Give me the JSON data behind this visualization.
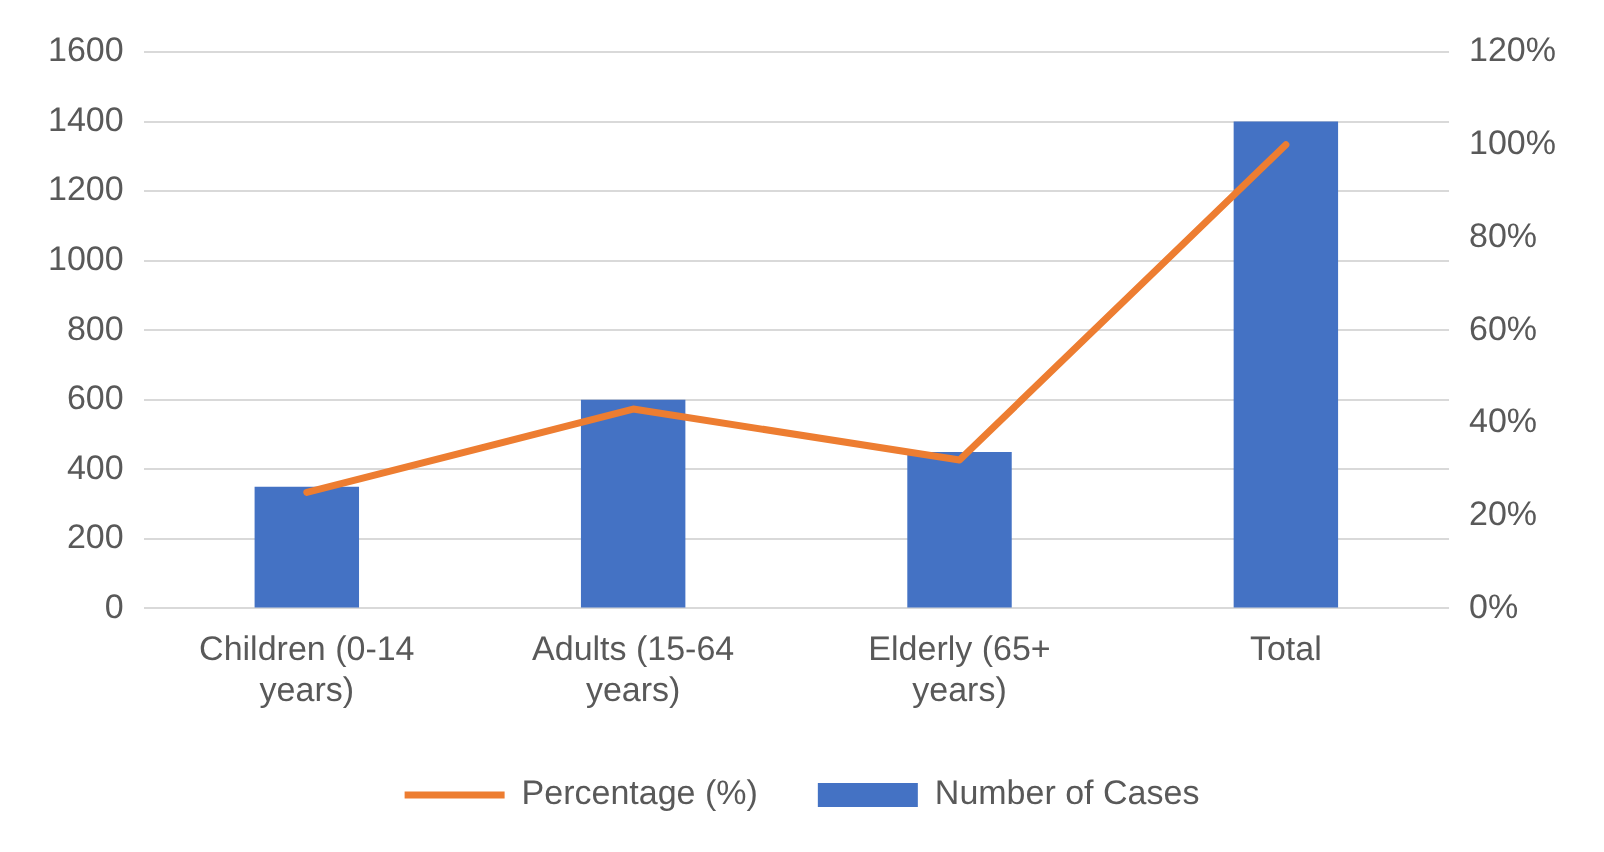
{
  "chart_data": {
    "type": "bar",
    "categories": [
      "Children (0-14 years)",
      "Adults (15-64 years)",
      "Elderly (65+ years)",
      "Total"
    ],
    "series": [
      {
        "name": "Number of Cases",
        "color": "#4472c4",
        "values": [
          350,
          600,
          450,
          1400
        ]
      },
      {
        "name": "Percentage (%)",
        "type": "line",
        "axis": "y2",
        "color": "#ed7d31",
        "values": [
          25,
          43,
          32,
          100
        ]
      }
    ],
    "ylim": [
      0,
      1600
    ],
    "yticks": [
      0,
      200,
      400,
      600,
      800,
      1000,
      1200,
      1400,
      1600
    ],
    "y2lim": [
      0,
      120
    ],
    "y2ticks": [
      {
        "value": 0,
        "label": "0%"
      },
      {
        "value": 20,
        "label": "20%"
      },
      {
        "value": 40,
        "label": "40%"
      },
      {
        "value": 60,
        "label": "60%"
      },
      {
        "value": 80,
        "label": "80%"
      },
      {
        "value": 100,
        "label": "100%"
      },
      {
        "value": 120,
        "label": "120%"
      }
    ],
    "grid": "y",
    "legend": "bottom",
    "marker": "none",
    "line_style": "solid"
  }
}
